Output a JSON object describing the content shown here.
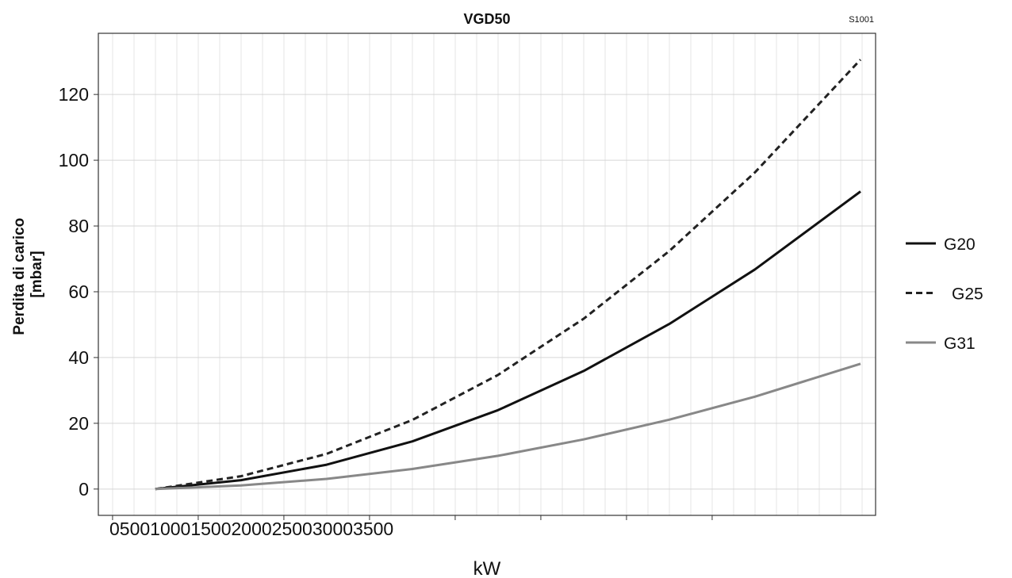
{
  "chart_data": {
    "type": "line",
    "title": "VGD50",
    "subtitle": "S1001",
    "xlabel": "kW",
    "ylabel": [
      "Perdita di carico",
      "[mbar]"
    ],
    "x": [
      250,
      750,
      1250,
      1750,
      2250,
      2750,
      3250,
      3750,
      4366
    ],
    "series": [
      {
        "name": "G20",
        "color": "#111111",
        "dash": false,
        "values": [
          0,
          2.7,
          7.4,
          14.5,
          24.0,
          35.9,
          50.2,
          66.8,
          90.5
        ]
      },
      {
        "name": "G25",
        "color": "#222222",
        "dash": true,
        "values": [
          0,
          3.9,
          10.7,
          21.0,
          34.7,
          51.8,
          72.4,
          96.3,
          130.6
        ]
      },
      {
        "name": "G31",
        "color": "#888888",
        "dash": false,
        "values": [
          0,
          1.1,
          3.1,
          6.1,
          10.1,
          15.1,
          21.1,
          28.1,
          38.1
        ]
      }
    ],
    "xlim": [
      -83,
      4454
    ],
    "ylim": [
      -8,
      138.6
    ],
    "xticks": [
      0,
      500,
      1000,
      1500,
      2000,
      2500,
      3000,
      3500
    ],
    "yticks": [
      0,
      20,
      40,
      60,
      80,
      100,
      120
    ],
    "grid": true,
    "legend": "right"
  }
}
